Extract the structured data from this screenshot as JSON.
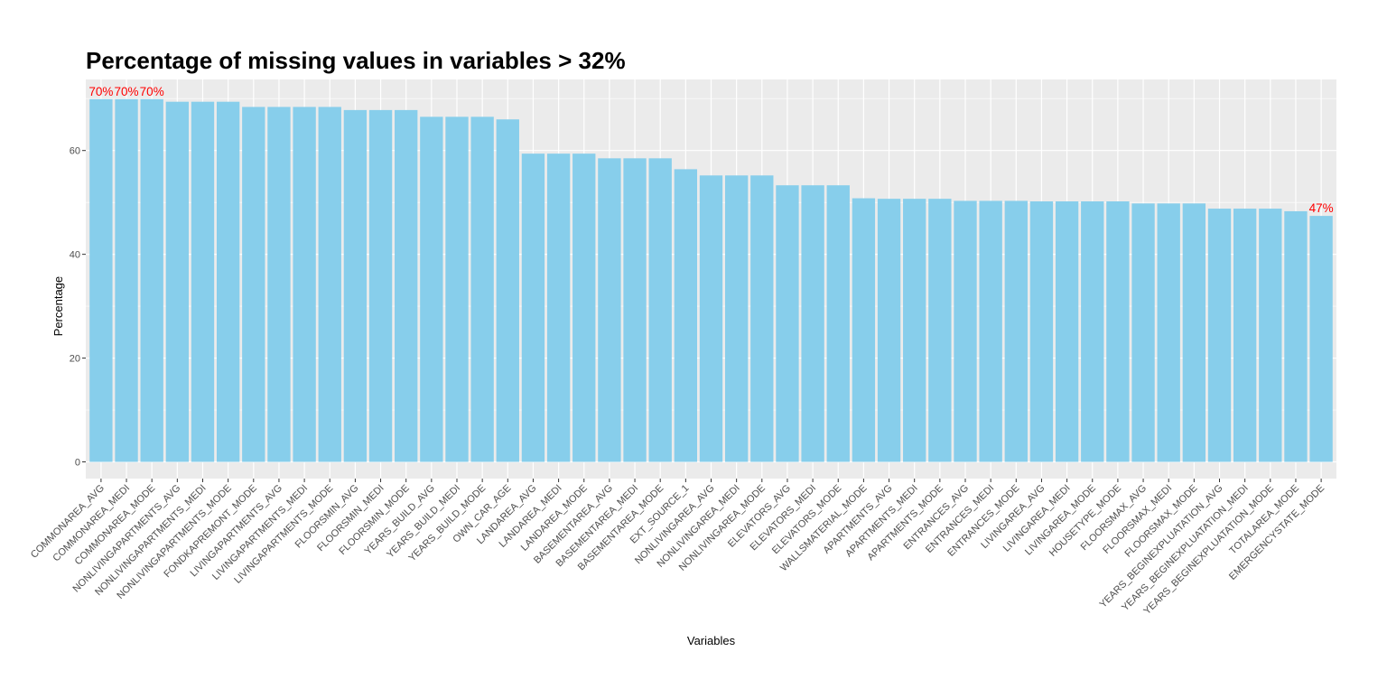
{
  "chart_data": {
    "type": "bar",
    "title": "Percentage of missing values in variables > 32%",
    "xlabel": "Variables",
    "ylabel": "Percentage",
    "ylim": [
      0,
      70
    ],
    "yticks": [
      0,
      20,
      40,
      60
    ],
    "grid": true,
    "bar_color": "#87CEEB",
    "panel_color": "#EBEBEB",
    "label_color": "#FF0000",
    "categories": [
      "COMMONAREA_AVG",
      "COMMONAREA_MEDI",
      "COMMONAREA_MODE",
      "NONLIVINGAPARTMENTS_AVG",
      "NONLIVINGAPARTMENTS_MEDI",
      "NONLIVINGAPARTMENTS_MODE",
      "FONDKAPREMONT_MODE",
      "LIVINGAPARTMENTS_AVG",
      "LIVINGAPARTMENTS_MEDI",
      "LIVINGAPARTMENTS_MODE",
      "FLOORSMIN_AVG",
      "FLOORSMIN_MEDI",
      "FLOORSMIN_MODE",
      "YEARS_BUILD_AVG",
      "YEARS_BUILD_MEDI",
      "YEARS_BUILD_MODE",
      "OWN_CAR_AGE",
      "LANDAREA_AVG",
      "LANDAREA_MEDI",
      "LANDAREA_MODE",
      "BASEMENTAREA_AVG",
      "BASEMENTAREA_MEDI",
      "BASEMENTAREA_MODE",
      "EXT_SOURCE_1",
      "NONLIVINGAREA_AVG",
      "NONLIVINGAREA_MEDI",
      "NONLIVINGAREA_MODE",
      "ELEVATORS_AVG",
      "ELEVATORS_MEDI",
      "ELEVATORS_MODE",
      "WALLSMATERIAL_MODE",
      "APARTMENTS_AVG",
      "APARTMENTS_MEDI",
      "APARTMENTS_MODE",
      "ENTRANCES_AVG",
      "ENTRANCES_MEDI",
      "ENTRANCES_MODE",
      "LIVINGAREA_AVG",
      "LIVINGAREA_MEDI",
      "LIVINGAREA_MODE",
      "HOUSETYPE_MODE",
      "FLOORSMAX_AVG",
      "FLOORSMAX_MEDI",
      "FLOORSMAX_MODE",
      "YEARS_BEGINEXPLUATATION_AVG",
      "YEARS_BEGINEXPLUATATION_MEDI",
      "YEARS_BEGINEXPLUATATION_MODE",
      "TOTALAREA_MODE",
      "EMERGENCYSTATE_MODE"
    ],
    "values": [
      69.9,
      69.9,
      69.9,
      69.4,
      69.4,
      69.4,
      68.4,
      68.4,
      68.4,
      68.4,
      67.8,
      67.8,
      67.8,
      66.5,
      66.5,
      66.5,
      66.0,
      59.4,
      59.4,
      59.4,
      58.5,
      58.5,
      58.5,
      56.4,
      55.2,
      55.2,
      55.2,
      53.3,
      53.3,
      53.3,
      50.8,
      50.7,
      50.7,
      50.7,
      50.3,
      50.3,
      50.3,
      50.2,
      50.2,
      50.2,
      50.2,
      49.8,
      49.8,
      49.8,
      48.8,
      48.8,
      48.8,
      48.3,
      47.4
    ],
    "data_labels": [
      "70%",
      "70%",
      "70%",
      "",
      "",
      "",
      "",
      "",
      "",
      "",
      "",
      "",
      "",
      "",
      "",
      "",
      "",
      "",
      "",
      "",
      "",
      "",
      "",
      "",
      "",
      "",
      "",
      "",
      "",
      "",
      "",
      "",
      "",
      "",
      "",
      "",
      "",
      "",
      "",
      "",
      "",
      "",
      "",
      "",
      "",
      "",
      "",
      "",
      "47%"
    ]
  }
}
